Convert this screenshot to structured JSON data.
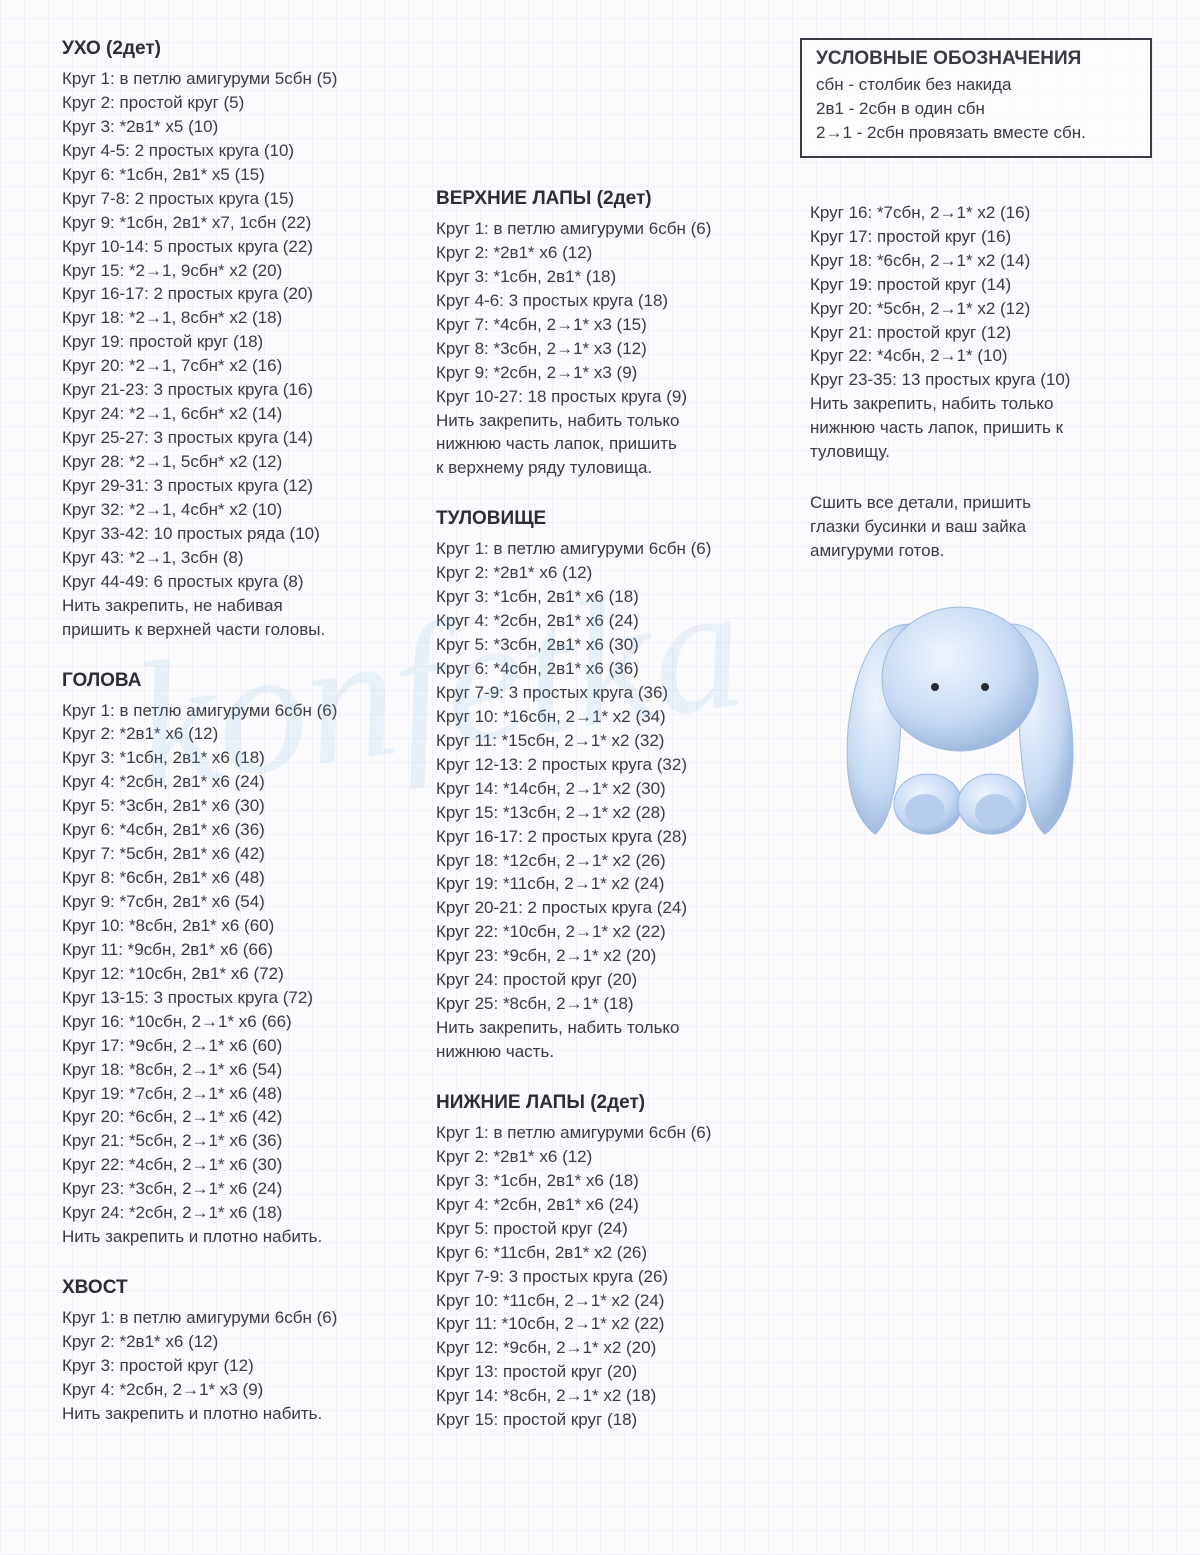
{
  "watermark_text": "konfetka",
  "legend": {
    "title": "УСЛОВНЫЕ ОБОЗНАЧЕНИЯ",
    "lines": [
      "сбн - столбик без накида",
      "2в1 - 2сбн в один сбн",
      "2→1 - 2сбн провязать вместе сбн."
    ]
  },
  "col1": [
    {
      "title": "УХО (2дет)",
      "lines": [
        "Круг 1: в петлю амигуруми 5сбн (5)",
        "Круг 2: простой круг (5)",
        "Круг 3: *2в1* х5 (10)",
        "Круг 4-5: 2 простых круга (10)",
        "Круг 6: *1сбн, 2в1* х5 (15)",
        "Круг 7-8: 2 простых круга (15)",
        "Круг 9: *1сбн, 2в1* х7, 1сбн (22)",
        "Круг 10-14: 5 простых круга (22)",
        "Круг 15: *2→1, 9сбн* х2 (20)",
        "Круг 16-17: 2 простых круга (20)",
        "Круг 18: *2→1, 8сбн* х2 (18)",
        "Круг 19: простой круг (18)",
        "Круг 20: *2→1, 7сбн* х2 (16)",
        "Круг 21-23: 3 простых круга (16)",
        "Круг 24: *2→1, 6сбн* х2 (14)",
        "Круг 25-27: 3 простых круга (14)",
        "Круг 28: *2→1, 5сбн* х2 (12)",
        "Круг 29-31: 3 простых круга (12)",
        "Круг 32: *2→1, 4сбн* х2 (10)",
        "Круг 33-42: 10 простых ряда (10)",
        "Круг 43: *2→1, 3сбн (8)",
        "Круг 44-49: 6 простых круга (8)",
        "Нить закрепить, не набивая",
        "пришить к верхней части головы."
      ]
    },
    {
      "title": "ГОЛОВА",
      "lines": [
        "Круг 1: в петлю амигуруми 6сбн (6)",
        "Круг 2: *2в1* х6 (12)",
        "Круг 3: *1сбн, 2в1* х6 (18)",
        "Круг 4: *2сбн, 2в1* х6 (24)",
        "Круг 5: *3сбн, 2в1* х6 (30)",
        "Круг 6: *4сбн, 2в1* х6 (36)",
        "Круг 7: *5сбн, 2в1* х6 (42)",
        "Круг 8: *6сбн, 2в1* х6 (48)",
        "Круг 9: *7сбн, 2в1* х6 (54)",
        "Круг 10: *8сбн, 2в1* х6 (60)",
        "Круг 11: *9сбн, 2в1* х6 (66)",
        "Круг 12: *10сбн, 2в1* х6 (72)",
        "Круг 13-15: 3 простых круга (72)",
        "Круг 16: *10сбн, 2→1* х6 (66)",
        "Круг 17: *9сбн, 2→1* х6 (60)",
        "Круг 18: *8сбн, 2→1* х6 (54)",
        "Круг 19: *7сбн, 2→1* х6 (48)",
        "Круг 20: *6сбн, 2→1* х6 (42)",
        "Круг 21: *5сбн, 2→1* х6 (36)",
        "Круг 22: *4сбн, 2→1* х6 (30)",
        "Круг 23: *3сбн, 2→1* х6 (24)",
        "Круг 24: *2сбн, 2→1* х6 (18)",
        "Нить закрепить и плотно набить."
      ]
    },
    {
      "title": "ХВОСТ",
      "lines": [
        "Круг 1: в петлю амигуруми 6сбн (6)",
        "Круг 2: *2в1* х6 (12)",
        "Круг 3: простой круг (12)",
        "Круг 4: *2сбн, 2→1* х3 (9)",
        "Нить закрепить и плотно набить."
      ]
    }
  ],
  "col2": [
    {
      "title": "ВЕРХНИЕ ЛАПЫ (2дет)",
      "lines": [
        "Круг 1: в петлю амигуруми 6сбн (6)",
        "Круг 2: *2в1* х6 (12)",
        "Круг 3: *1сбн, 2в1* (18)",
        "Круг 4-6: 3 простых круга (18)",
        "Круг 7: *4сбн, 2→1* х3 (15)",
        "Круг 8: *3сбн, 2→1* х3 (12)",
        "Круг 9: *2сбн, 2→1* х3 (9)",
        "Круг 10-27: 18 простых круга (9)",
        "Нить закрепить, набить только",
        "нижнюю часть лапок, пришить",
        "к верхнему ряду туловища."
      ]
    },
    {
      "title": "ТУЛОВИЩЕ",
      "lines": [
        "Круг 1: в петлю амигуруми 6сбн (6)",
        "Круг 2: *2в1* х6 (12)",
        "Круг 3: *1сбн, 2в1* х6 (18)",
        "Круг 4: *2сбн, 2в1* х6 (24)",
        "Круг 5: *3сбн, 2в1* х6 (30)",
        "Круг 6: *4сбн, 2в1* х6 (36)",
        "Круг 7-9: 3 простых круга (36)",
        "Круг 10: *16сбн, 2→1* х2 (34)",
        "Круг 11: *15сбн, 2→1* х2 (32)",
        "Круг 12-13: 2 простых круга (32)",
        "Круг 14: *14сбн, 2→1* х2 (30)",
        "Круг 15: *13сбн, 2→1* х2 (28)",
        "Круг 16-17: 2 простых круга (28)",
        "Круг 18: *12сбн, 2→1* х2 (26)",
        "Круг 19: *11сбн, 2→1* х2 (24)",
        "Круг 20-21: 2 простых круга (24)",
        "Круг 22: *10сбн, 2→1* х2 (22)",
        "Круг 23: *9сбн, 2→1* х2 (20)",
        "Круг 24: простой круг (20)",
        "Круг 25: *8сбн, 2→1* (18)",
        "Нить закрепить, набить только",
        "нижнюю часть."
      ]
    },
    {
      "title": "НИЖНИЕ ЛАПЫ (2дет)",
      "lines": [
        "Круг 1: в петлю амигуруми 6сбн (6)",
        "Круг 2: *2в1* х6 (12)",
        "Круг 3: *1сбн, 2в1* х6 (18)",
        "Круг 4: *2сбн, 2в1* х6 (24)",
        "Круг 5: простой круг (24)",
        "Круг 6: *11сбн, 2в1* х2 (26)",
        "Круг 7-9: 3 простых круга (26)",
        "Круг 10: *11сбн, 2→1* х2 (24)",
        "Круг 11: *10сбн, 2→1* х2 (22)",
        "Круг 12: *9сбн, 2→1* х2 (20)",
        "Круг 13: простой круг (20)",
        "Круг 14: *8сбн, 2→1* х2 (18)",
        "Круг 15: простой круг (18)"
      ]
    }
  ],
  "col3_sections": [
    {
      "title": "",
      "lines": [
        "Круг 16: *7сбн, 2→1* х2 (16)",
        "Круг 17: простой круг (16)",
        "Круг 18: *6сбн, 2→1* х2 (14)",
        "Круг 19: простой круг (14)",
        "Круг 20: *5сбн, 2→1* х2 (12)",
        "Круг 21: простой круг (12)",
        "Круг 22: *4сбн, 2→1* (10)",
        "Круг 23-35: 13 простых круга (10)",
        "Нить закрепить, набить только",
        "нижнюю часть лапок, пришить к",
        "туловищу."
      ]
    }
  ],
  "col3_final": [
    "Сшить все детали, пришить",
    "глазки бусинки и ваш зайка",
    "амигуруми готов."
  ],
  "bunny_colors": {
    "fill": "#c6d9f2",
    "shadow": "#9fb9df",
    "highlight": "#eef4fc",
    "eye": "#2a2a33"
  }
}
